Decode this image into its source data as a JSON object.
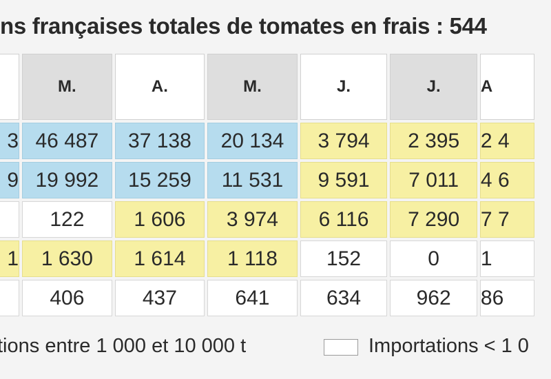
{
  "title": "ns françaises totales de tomates en frais : 544",
  "headers": [
    {
      "label": "",
      "shade": "white"
    },
    {
      "label": "M.",
      "shade": "grey"
    },
    {
      "label": "A.",
      "shade": "white"
    },
    {
      "label": "M.",
      "shade": "grey"
    },
    {
      "label": "J.",
      "shade": "white"
    },
    {
      "label": "J.",
      "shade": "grey"
    },
    {
      "label": "A",
      "shade": "white"
    }
  ],
  "rows": [
    [
      "3",
      "46 487",
      "37 138",
      "20 134",
      "3 794",
      "2 395",
      "2 4"
    ],
    [
      "9",
      "19 992",
      "15 259",
      "11 531",
      "9 591",
      "7 011",
      "4 6"
    ],
    [
      "",
      "122",
      "1 606",
      "3 974",
      "6 116",
      "7 290",
      "7 7"
    ],
    [
      "1",
      "1 630",
      "1 614",
      "1 118",
      "152",
      "0",
      "1"
    ],
    [
      "",
      "406",
      "437",
      "641",
      "634",
      "962",
      "86"
    ]
  ],
  "colors": {
    "high": "#b6dcee",
    "mid": "#f7f0a3",
    "low": "#ffffff"
  },
  "cell_shades": [
    [
      "blue",
      "blue",
      "blue",
      "blue",
      "yellow",
      "yellow",
      "yellow"
    ],
    [
      "blue",
      "blue",
      "blue",
      "blue",
      "yellow",
      "yellow",
      "yellow"
    ],
    [
      "white",
      "white",
      "yellow",
      "yellow",
      "yellow",
      "yellow",
      "yellow"
    ],
    [
      "yellow",
      "yellow",
      "yellow",
      "yellow",
      "white",
      "white",
      "white"
    ],
    [
      "white",
      "white",
      "white",
      "white",
      "white",
      "white",
      "white"
    ]
  ],
  "legend": {
    "mid_label": "tions entre 1 000 et 10 000 t",
    "low_label": "Importations < 1 0"
  }
}
